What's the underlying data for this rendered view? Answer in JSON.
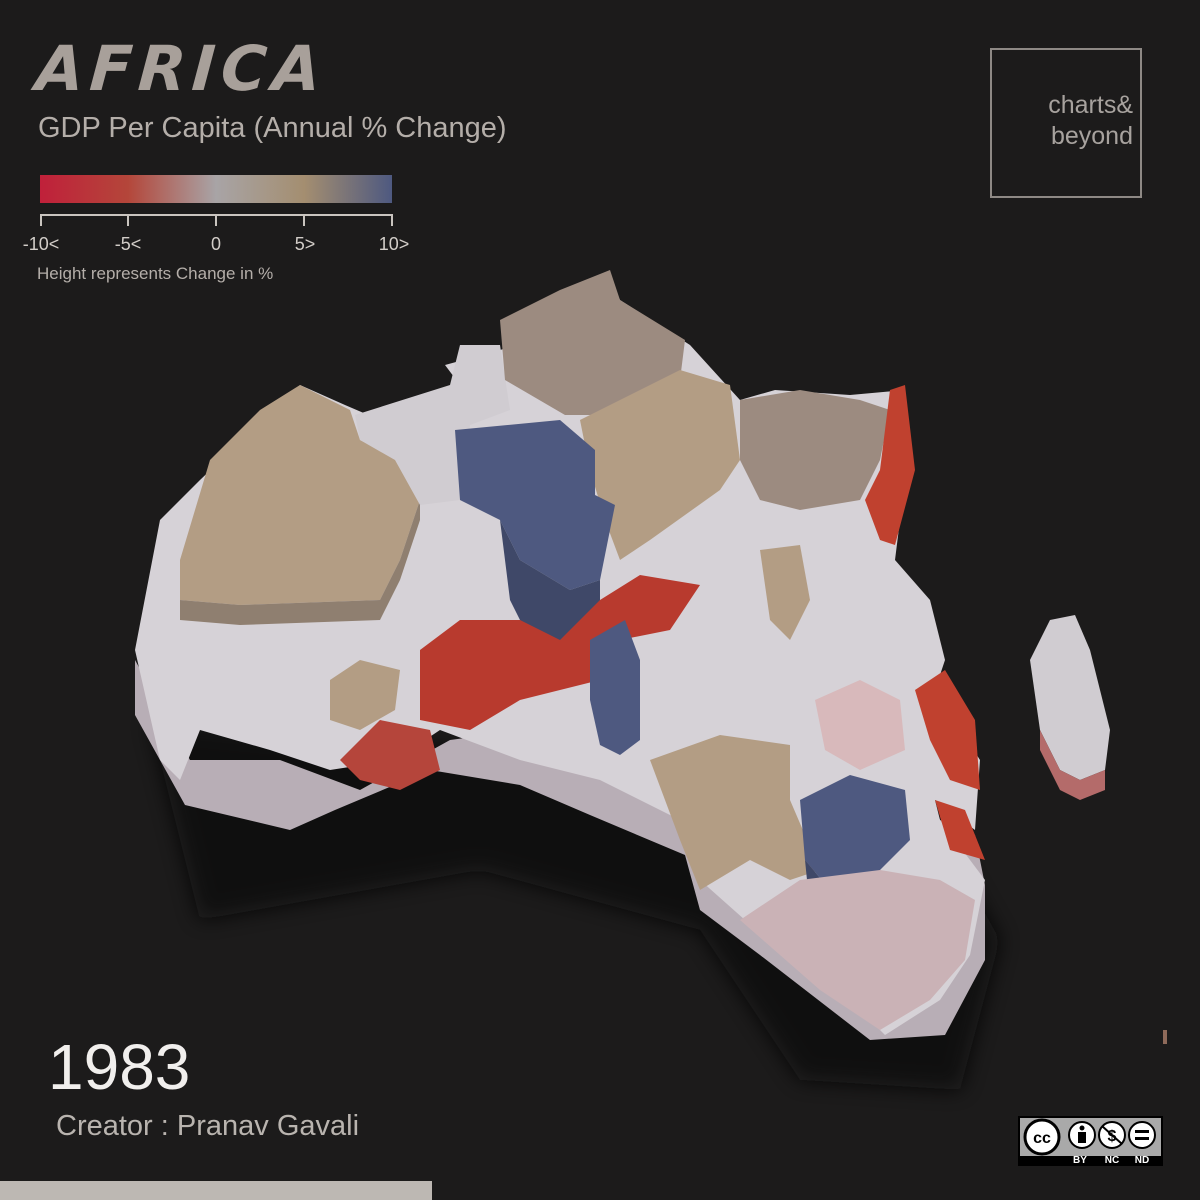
{
  "title": "AFRICA",
  "subtitle": "GDP Per Capita (Annual % Change)",
  "legend": {
    "ticks": [
      "-10<",
      "-5<",
      "0",
      "5>",
      "10>"
    ],
    "tick_values": [
      -10,
      -5,
      0,
      5,
      10
    ],
    "note": "Height represents Change in %",
    "colors": [
      "#c0203a",
      "#b4463a",
      "#a8a4a6",
      "#a48e70",
      "#4e5980"
    ]
  },
  "brand": {
    "line1": "charts&",
    "line2": "beyond"
  },
  "year": "1983",
  "creator": "Creator : Pranav Gavali",
  "timeline_progress": 0.36,
  "license": {
    "labels": [
      "BY",
      "NC",
      "ND"
    ],
    "icons": [
      "cc-icon",
      "attribution-icon",
      "noncommercial-icon",
      "noderivs-icon"
    ]
  }
}
